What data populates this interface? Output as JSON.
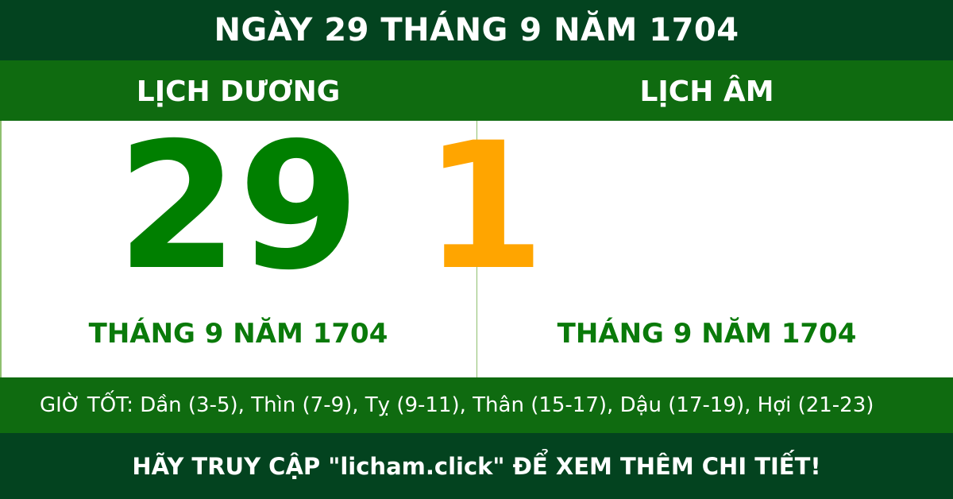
{
  "title": "NGÀY 29 THÁNG 9 NĂM 1704",
  "solar": {
    "label": "LỊCH DƯƠNG",
    "day": "29",
    "month_year": "THÁNG 9 NĂM 1704"
  },
  "lunar": {
    "label": "LỊCH ÂM",
    "day": "1",
    "month_year": "THÁNG 9 NĂM 1704"
  },
  "good_hours": "GIỜ TỐT: Dần (3-5), Thìn (7-9), Tỵ (9-11), Thân (15-17), Dậu (17-19), Hợi (21-23)",
  "footer": "HÃY TRUY CẬP \"licham.click\" ĐỂ XEM THÊM CHI TIẾT!",
  "colors": {
    "header": "#03431f",
    "band": "#0f6b10",
    "solar_day": "#007f00",
    "lunar_day": "#ffa500"
  }
}
